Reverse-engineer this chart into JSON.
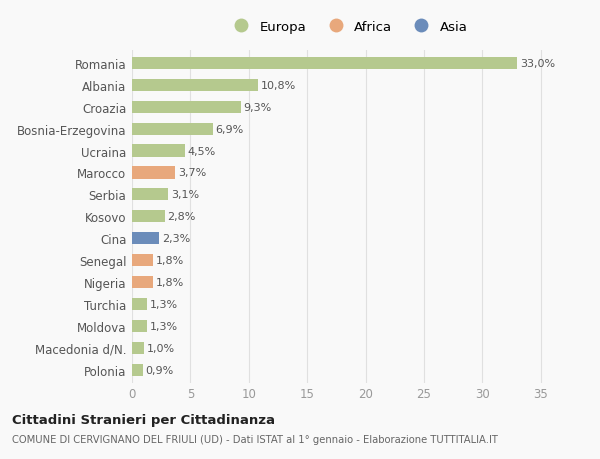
{
  "countries": [
    "Romania",
    "Albania",
    "Croazia",
    "Bosnia-Erzegovina",
    "Ucraina",
    "Marocco",
    "Serbia",
    "Kosovo",
    "Cina",
    "Senegal",
    "Nigeria",
    "Turchia",
    "Moldova",
    "Macedonia d/N.",
    "Polonia"
  ],
  "values": [
    33.0,
    10.8,
    9.3,
    6.9,
    4.5,
    3.7,
    3.1,
    2.8,
    2.3,
    1.8,
    1.8,
    1.3,
    1.3,
    1.0,
    0.9
  ],
  "labels": [
    "33,0%",
    "10,8%",
    "9,3%",
    "6,9%",
    "4,5%",
    "3,7%",
    "3,1%",
    "2,8%",
    "2,3%",
    "1,8%",
    "1,8%",
    "1,3%",
    "1,3%",
    "1,0%",
    "0,9%"
  ],
  "continents": [
    "Europa",
    "Europa",
    "Europa",
    "Europa",
    "Europa",
    "Africa",
    "Europa",
    "Europa",
    "Asia",
    "Africa",
    "Africa",
    "Europa",
    "Europa",
    "Europa",
    "Europa"
  ],
  "colors": {
    "Europa": "#b5c98e",
    "Africa": "#e8a87c",
    "Asia": "#6b8cba"
  },
  "xlim": [
    0,
    37
  ],
  "xticks": [
    0,
    5,
    10,
    15,
    20,
    25,
    30,
    35
  ],
  "title": "Cittadini Stranieri per Cittadinanza",
  "subtitle": "COMUNE DI CERVIGNANO DEL FRIULI (UD) - Dati ISTAT al 1° gennaio - Elaborazione TUTTITALIA.IT",
  "bg_color": "#f9f9f9",
  "grid_color": "#e0e0e0"
}
